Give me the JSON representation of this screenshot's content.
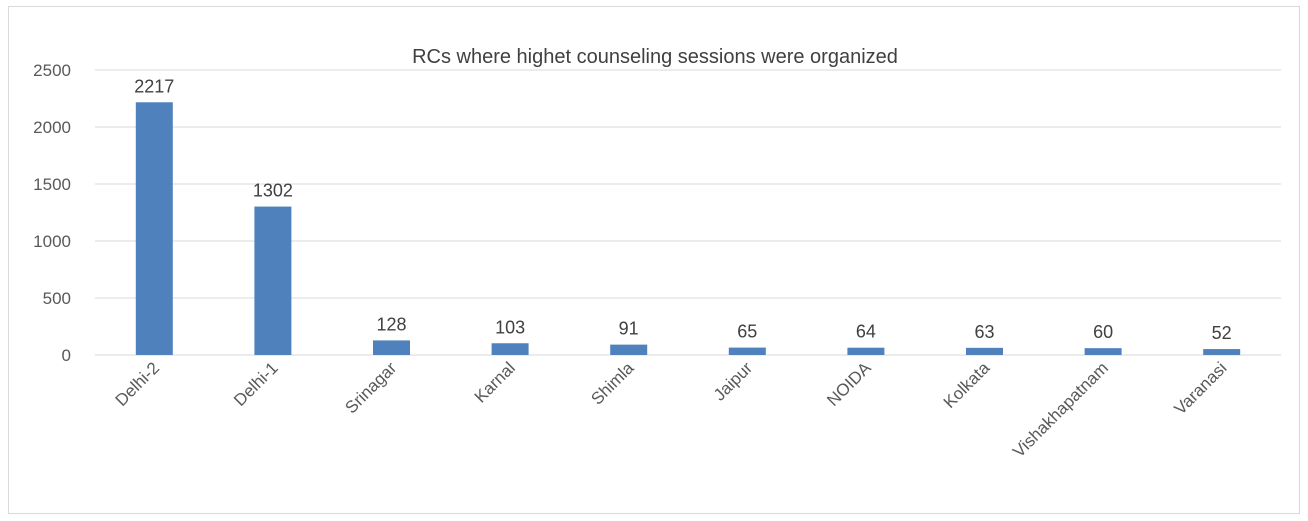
{
  "chart_data": {
    "type": "bar",
    "title": "RCs where highet counseling sessions were organized",
    "categories": [
      "Delhi-2",
      "Delhi-1",
      "Srinagar",
      "Karnal",
      "Shimla",
      "Jaipur",
      "NOIDA",
      "Kolkata",
      "Vishakhapatnam",
      "Varanasi"
    ],
    "values": [
      2217,
      1302,
      128,
      103,
      91,
      65,
      64,
      63,
      60,
      52
    ],
    "xlabel": "",
    "ylabel": "",
    "ylim": [
      0,
      2500
    ],
    "yticks": [
      0,
      500,
      1000,
      1500,
      2000,
      2500
    ],
    "grid": true,
    "legend": "none",
    "bar_color": "#4f81bd",
    "grid_color": "#d9d9d9"
  }
}
